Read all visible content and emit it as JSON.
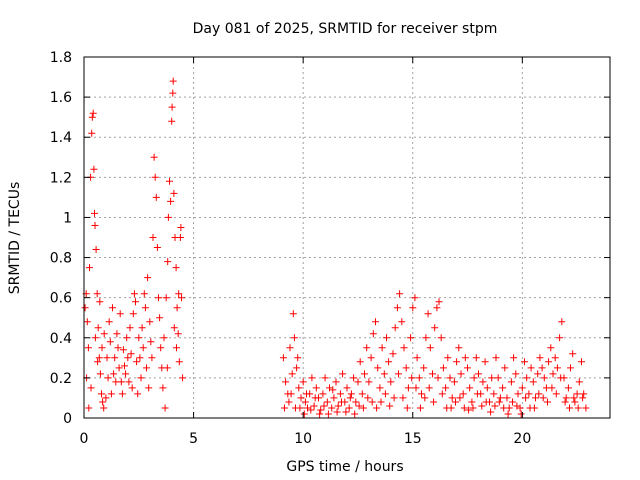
{
  "chart_data": {
    "type": "scatter",
    "title": "Day 081 of 2025, SRMTID for receiver stpm",
    "xlabel": "GPS time / hours",
    "ylabel": "SRMTID / TECUs",
    "xlim": [
      0,
      24
    ],
    "ylim": [
      0,
      1.8
    ],
    "x_ticks": [
      0,
      5,
      10,
      15,
      20
    ],
    "x_tick_labels": [
      "0",
      "5",
      "10",
      "15",
      "20"
    ],
    "y_ticks": [
      0,
      0.2,
      0.4,
      0.6,
      0.8,
      1,
      1.2,
      1.4,
      1.6,
      1.8
    ],
    "y_tick_labels": [
      "0",
      "0.2",
      "0.4",
      "0.6",
      "0.8",
      "1",
      "1.2",
      "1.4",
      "1.6",
      "1.8"
    ],
    "grid": true,
    "marker": "+",
    "color": "#ff0000",
    "series": [
      {
        "name": "SRMTID",
        "points": [
          [
            0.05,
            0.55
          ],
          [
            0.1,
            0.62
          ],
          [
            0.15,
            0.48
          ],
          [
            0.2,
            0.35
          ],
          [
            0.25,
            0.75
          ],
          [
            0.3,
            1.2
          ],
          [
            0.35,
            1.42
          ],
          [
            0.38,
            1.5
          ],
          [
            0.42,
            1.52
          ],
          [
            0.45,
            1.24
          ],
          [
            0.48,
            1.02
          ],
          [
            0.5,
            0.96
          ],
          [
            0.55,
            0.84
          ],
          [
            0.6,
            0.62
          ],
          [
            0.65,
            0.45
          ],
          [
            0.7,
            0.3
          ],
          [
            0.75,
            0.22
          ],
          [
            0.8,
            0.12
          ],
          [
            0.85,
            0.08
          ],
          [
            0.9,
            0.05
          ],
          [
            1.0,
            0.1
          ],
          [
            1.1,
            0.2
          ],
          [
            1.2,
            0.38
          ],
          [
            1.3,
            0.55
          ],
          [
            1.4,
            0.3
          ],
          [
            1.5,
            0.42
          ],
          [
            1.6,
            0.25
          ],
          [
            1.7,
            0.18
          ],
          [
            1.8,
            0.34
          ],
          [
            1.9,
            0.22
          ],
          [
            2.0,
            0.3
          ],
          [
            2.1,
            0.45
          ],
          [
            2.2,
            0.15
          ],
          [
            2.3,
            0.62
          ],
          [
            2.4,
            0.28
          ],
          [
            2.5,
            0.4
          ],
          [
            2.6,
            0.2
          ],
          [
            2.7,
            0.35
          ],
          [
            2.8,
            0.55
          ],
          [
            2.9,
            0.7
          ],
          [
            3.0,
            0.48
          ],
          [
            3.1,
            0.3
          ],
          [
            3.15,
            0.9
          ],
          [
            3.2,
            1.3
          ],
          [
            3.25,
            1.2
          ],
          [
            3.3,
            1.1
          ],
          [
            3.35,
            0.85
          ],
          [
            3.4,
            0.6
          ],
          [
            3.5,
            0.35
          ],
          [
            3.6,
            0.15
          ],
          [
            3.7,
            0.05
          ],
          [
            3.8,
            0.25
          ],
          [
            3.85,
            1.0
          ],
          [
            3.9,
            1.18
          ],
          [
            3.95,
            1.08
          ],
          [
            4.0,
            1.48
          ],
          [
            4.02,
            1.55
          ],
          [
            4.05,
            1.62
          ],
          [
            4.07,
            1.68
          ],
          [
            4.1,
            1.12
          ],
          [
            4.15,
            0.9
          ],
          [
            4.2,
            0.75
          ],
          [
            4.25,
            0.55
          ],
          [
            4.3,
            0.42
          ],
          [
            4.35,
            0.28
          ],
          [
            4.4,
            0.9
          ],
          [
            4.45,
            0.6
          ],
          [
            4.5,
            0.2
          ],
          [
            0.12,
            0.2
          ],
          [
            0.22,
            0.05
          ],
          [
            0.32,
            0.15
          ],
          [
            0.52,
            0.4
          ],
          [
            0.62,
            0.28
          ],
          [
            0.72,
            0.58
          ],
          [
            0.82,
            0.35
          ],
          [
            0.92,
            0.42
          ],
          [
            1.05,
            0.3
          ],
          [
            1.15,
            0.48
          ],
          [
            1.25,
            0.12
          ],
          [
            1.35,
            0.22
          ],
          [
            1.45,
            0.18
          ],
          [
            1.55,
            0.35
          ],
          [
            1.65,
            0.52
          ],
          [
            1.75,
            0.12
          ],
          [
            1.85,
            0.26
          ],
          [
            1.95,
            0.4
          ],
          [
            2.05,
            0.18
          ],
          [
            2.15,
            0.32
          ],
          [
            2.25,
            0.52
          ],
          [
            2.35,
            0.58
          ],
          [
            2.45,
            0.12
          ],
          [
            2.55,
            0.3
          ],
          [
            2.65,
            0.45
          ],
          [
            2.75,
            0.62
          ],
          [
            2.85,
            0.25
          ],
          [
            2.95,
            0.15
          ],
          [
            3.05,
            0.38
          ],
          [
            3.45,
            0.5
          ],
          [
            3.55,
            0.25
          ],
          [
            3.65,
            0.4
          ],
          [
            3.75,
            0.6
          ],
          [
            3.82,
            0.78
          ],
          [
            4.12,
            0.45
          ],
          [
            4.22,
            0.35
          ],
          [
            4.32,
            0.62
          ],
          [
            4.42,
            0.95
          ],
          [
            9.1,
            0.3
          ],
          [
            9.2,
            0.18
          ],
          [
            9.3,
            0.12
          ],
          [
            9.4,
            0.35
          ],
          [
            9.5,
            0.22
          ],
          [
            9.55,
            0.52
          ],
          [
            9.6,
            0.4
          ],
          [
            9.7,
            0.25
          ],
          [
            9.8,
            0.15
          ],
          [
            9.9,
            0.1
          ],
          [
            10.0,
            0.18
          ],
          [
            10.1,
            0.08
          ],
          [
            10.2,
            0.05
          ],
          [
            10.3,
            0.12
          ],
          [
            10.4,
            0.2
          ],
          [
            10.5,
            0.06
          ],
          [
            10.6,
            0.15
          ],
          [
            10.7,
            0.1
          ],
          [
            10.8,
            0.04
          ],
          [
            10.9,
            0.12
          ],
          [
            11.0,
            0.2
          ],
          [
            11.1,
            0.08
          ],
          [
            11.2,
            0.15
          ],
          [
            11.3,
            0.05
          ],
          [
            11.4,
            0.1
          ],
          [
            11.5,
            0.18
          ],
          [
            11.6,
            0.06
          ],
          [
            11.7,
            0.12
          ],
          [
            11.8,
            0.22
          ],
          [
            11.9,
            0.08
          ],
          [
            12.0,
            0.15
          ],
          [
            12.1,
            0.05
          ],
          [
            12.2,
            0.12
          ],
          [
            12.3,
            0.2
          ],
          [
            12.4,
            0.08
          ],
          [
            12.5,
            0.18
          ],
          [
            12.6,
            0.28
          ],
          [
            12.7,
            0.12
          ],
          [
            12.8,
            0.22
          ],
          [
            12.9,
            0.35
          ],
          [
            13.0,
            0.18
          ],
          [
            13.1,
            0.3
          ],
          [
            13.2,
            0.42
          ],
          [
            13.3,
            0.48
          ],
          [
            13.4,
            0.25
          ],
          [
            13.5,
            0.15
          ],
          [
            13.6,
            0.35
          ],
          [
            13.7,
            0.22
          ],
          [
            13.8,
            0.4
          ],
          [
            13.9,
            0.28
          ],
          [
            14.0,
            0.18
          ],
          [
            14.1,
            0.32
          ],
          [
            14.2,
            0.45
          ],
          [
            14.3,
            0.55
          ],
          [
            14.4,
            0.62
          ],
          [
            14.5,
            0.48
          ],
          [
            14.6,
            0.35
          ],
          [
            14.7,
            0.25
          ],
          [
            14.8,
            0.15
          ],
          [
            14.9,
            0.4
          ],
          [
            15.0,
            0.55
          ],
          [
            15.1,
            0.6
          ],
          [
            15.2,
            0.3
          ],
          [
            15.3,
            0.2
          ],
          [
            15.4,
            0.12
          ],
          [
            15.5,
            0.25
          ],
          [
            15.6,
            0.4
          ],
          [
            15.7,
            0.52
          ],
          [
            15.8,
            0.35
          ],
          [
            15.9,
            0.22
          ],
          [
            16.0,
            0.45
          ],
          [
            16.1,
            0.55
          ],
          [
            16.2,
            0.58
          ],
          [
            16.3,
            0.4
          ],
          [
            16.4,
            0.25
          ],
          [
            16.5,
            0.15
          ],
          [
            16.6,
            0.3
          ],
          [
            16.7,
            0.2
          ],
          [
            16.8,
            0.1
          ],
          [
            16.9,
            0.18
          ],
          [
            17.0,
            0.28
          ],
          [
            17.1,
            0.35
          ],
          [
            17.2,
            0.22
          ],
          [
            17.3,
            0.12
          ],
          [
            17.4,
            0.3
          ],
          [
            17.5,
            0.25
          ],
          [
            17.6,
            0.15
          ],
          [
            17.7,
            0.08
          ],
          [
            17.8,
            0.2
          ],
          [
            17.9,
            0.3
          ],
          [
            18.0,
            0.22
          ],
          [
            18.1,
            0.12
          ],
          [
            18.2,
            0.18
          ],
          [
            18.3,
            0.28
          ],
          [
            18.4,
            0.15
          ],
          [
            18.5,
            0.08
          ],
          [
            18.6,
            0.2
          ],
          [
            18.7,
            0.12
          ],
          [
            18.8,
            0.3
          ],
          [
            18.9,
            0.2
          ],
          [
            19.0,
            0.1
          ],
          [
            19.1,
            0.15
          ],
          [
            19.2,
            0.25
          ],
          [
            19.3,
            0.1
          ],
          [
            19.4,
            0.05
          ],
          [
            19.5,
            0.18
          ],
          [
            19.6,
            0.3
          ],
          [
            19.7,
            0.22
          ],
          [
            19.8,
            0.12
          ],
          [
            19.9,
            0.05
          ],
          [
            20.0,
            0.15
          ],
          [
            20.1,
            0.28
          ],
          [
            20.2,
            0.2
          ],
          [
            20.3,
            0.12
          ],
          [
            20.4,
            0.25
          ],
          [
            20.5,
            0.18
          ],
          [
            20.6,
            0.1
          ],
          [
            20.7,
            0.22
          ],
          [
            20.8,
            0.3
          ],
          [
            20.9,
            0.25
          ],
          [
            21.0,
            0.2
          ],
          [
            21.1,
            0.15
          ],
          [
            21.2,
            0.28
          ],
          [
            21.3,
            0.35
          ],
          [
            21.4,
            0.22
          ],
          [
            21.5,
            0.3
          ],
          [
            21.6,
            0.25
          ],
          [
            21.7,
            0.4
          ],
          [
            21.8,
            0.48
          ],
          [
            21.9,
            0.2
          ],
          [
            22.0,
            0.1
          ],
          [
            22.1,
            0.15
          ],
          [
            22.2,
            0.25
          ],
          [
            22.3,
            0.32
          ],
          [
            22.4,
            0.08
          ],
          [
            22.5,
            0.12
          ],
          [
            22.6,
            0.18
          ],
          [
            22.7,
            0.28
          ],
          [
            22.8,
            0.12
          ],
          [
            22.9,
            0.05
          ],
          [
            9.15,
            0.05
          ],
          [
            9.35,
            0.08
          ],
          [
            9.45,
            0.12
          ],
          [
            9.65,
            0.05
          ],
          [
            9.75,
            0.3
          ],
          [
            9.85,
            0.05
          ],
          [
            10.05,
            0.02
          ],
          [
            10.15,
            0.12
          ],
          [
            10.35,
            0.04
          ],
          [
            10.55,
            0.1
          ],
          [
            10.75,
            0.02
          ],
          [
            10.95,
            0.06
          ],
          [
            11.15,
            0.02
          ],
          [
            11.35,
            0.14
          ],
          [
            11.55,
            0.03
          ],
          [
            11.75,
            0.08
          ],
          [
            11.95,
            0.03
          ],
          [
            12.15,
            0.1
          ],
          [
            12.35,
            0.02
          ],
          [
            12.55,
            0.06
          ],
          [
            12.75,
            0.05
          ],
          [
            12.95,
            0.1
          ],
          [
            13.15,
            0.08
          ],
          [
            13.35,
            0.05
          ],
          [
            13.55,
            0.08
          ],
          [
            13.75,
            0.12
          ],
          [
            13.95,
            0.06
          ],
          [
            14.15,
            0.1
          ],
          [
            14.35,
            0.22
          ],
          [
            14.55,
            0.1
          ],
          [
            14.75,
            0.05
          ],
          [
            14.95,
            0.2
          ],
          [
            15.15,
            0.15
          ],
          [
            15.35,
            0.05
          ],
          [
            15.55,
            0.1
          ],
          [
            15.75,
            0.15
          ],
          [
            15.95,
            0.08
          ],
          [
            16.15,
            0.2
          ],
          [
            16.35,
            0.12
          ],
          [
            16.55,
            0.05
          ],
          [
            16.75,
            0.05
          ],
          [
            16.95,
            0.08
          ],
          [
            17.15,
            0.1
          ],
          [
            17.35,
            0.05
          ],
          [
            17.55,
            0.04
          ],
          [
            17.75,
            0.05
          ],
          [
            17.95,
            0.12
          ],
          [
            18.15,
            0.06
          ],
          [
            18.35,
            0.08
          ],
          [
            18.55,
            0.03
          ],
          [
            18.75,
            0.06
          ],
          [
            18.95,
            0.08
          ],
          [
            19.15,
            0.05
          ],
          [
            19.35,
            0.02
          ],
          [
            19.55,
            0.08
          ],
          [
            19.75,
            0.06
          ],
          [
            19.95,
            0.02
          ],
          [
            20.15,
            0.1
          ],
          [
            20.35,
            0.05
          ],
          [
            20.55,
            0.05
          ],
          [
            20.75,
            0.12
          ],
          [
            20.95,
            0.1
          ],
          [
            21.15,
            0.08
          ],
          [
            21.35,
            0.15
          ],
          [
            21.55,
            0.12
          ],
          [
            21.75,
            0.2
          ],
          [
            21.95,
            0.08
          ],
          [
            22.15,
            0.05
          ],
          [
            22.35,
            0.1
          ],
          [
            22.55,
            0.05
          ],
          [
            22.75,
            0.1
          ]
        ]
      }
    ]
  }
}
